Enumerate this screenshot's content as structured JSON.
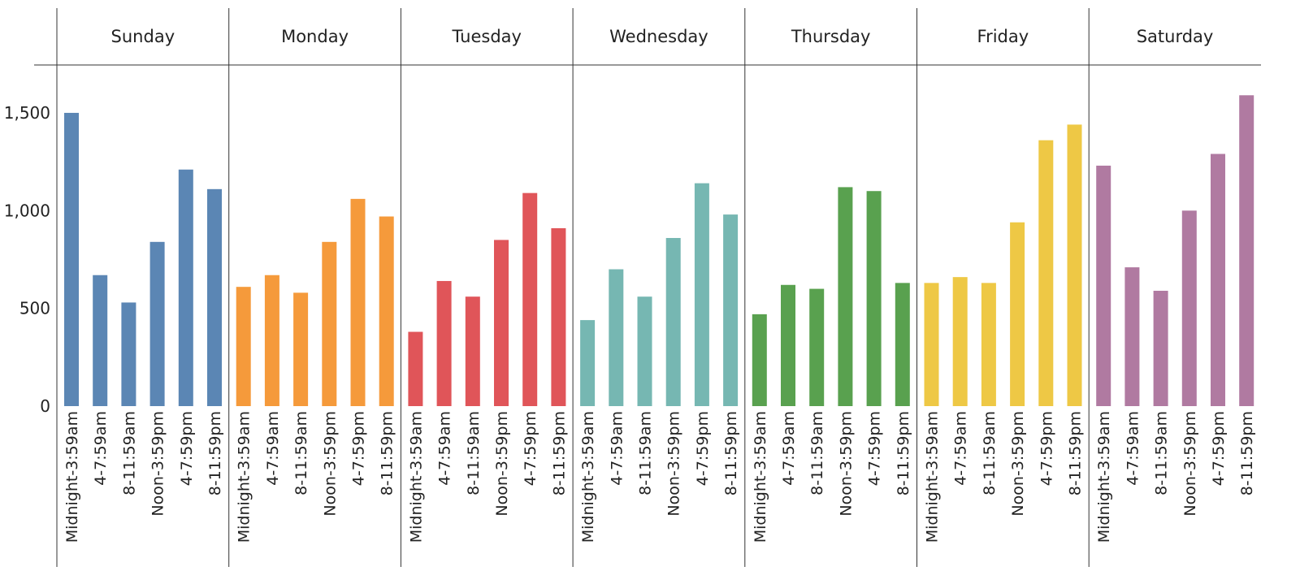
{
  "chart_data": {
    "type": "bar",
    "title": "",
    "xlabel": "",
    "ylabel": "",
    "ylim": [
      0,
      1750
    ],
    "yticks": [
      0,
      500,
      1000,
      1500
    ],
    "ytick_labels": [
      "0",
      "500",
      "1,000",
      "1,500"
    ],
    "grid": false,
    "legend": "none",
    "categories": [
      "Midnight-3:59am",
      "4-7:59am",
      "8-11:59am",
      "Noon-3:59pm",
      "4-7:59pm",
      "8-11:59pm"
    ],
    "panels": [
      {
        "name": "Sunday",
        "color": "#5b86b4",
        "values": [
          1500,
          670,
          530,
          840,
          1210,
          1110
        ]
      },
      {
        "name": "Monday",
        "color": "#f59a3b",
        "values": [
          610,
          670,
          580,
          840,
          1060,
          970
        ]
      },
      {
        "name": "Tuesday",
        "color": "#e05559",
        "values": [
          380,
          640,
          560,
          850,
          1090,
          910
        ]
      },
      {
        "name": "Wednesday",
        "color": "#76b7b2",
        "values": [
          440,
          700,
          560,
          860,
          1140,
          980
        ]
      },
      {
        "name": "Thursday",
        "color": "#59a14f",
        "values": [
          470,
          620,
          600,
          1120,
          1100,
          630
        ]
      },
      {
        "name": "Friday",
        "color": "#eec845",
        "values": [
          630,
          660,
          630,
          940,
          1360,
          1440
        ]
      },
      {
        "name": "Saturday",
        "color": "#b07aa1",
        "values": [
          1230,
          710,
          590,
          1000,
          1290,
          1590
        ]
      }
    ]
  }
}
